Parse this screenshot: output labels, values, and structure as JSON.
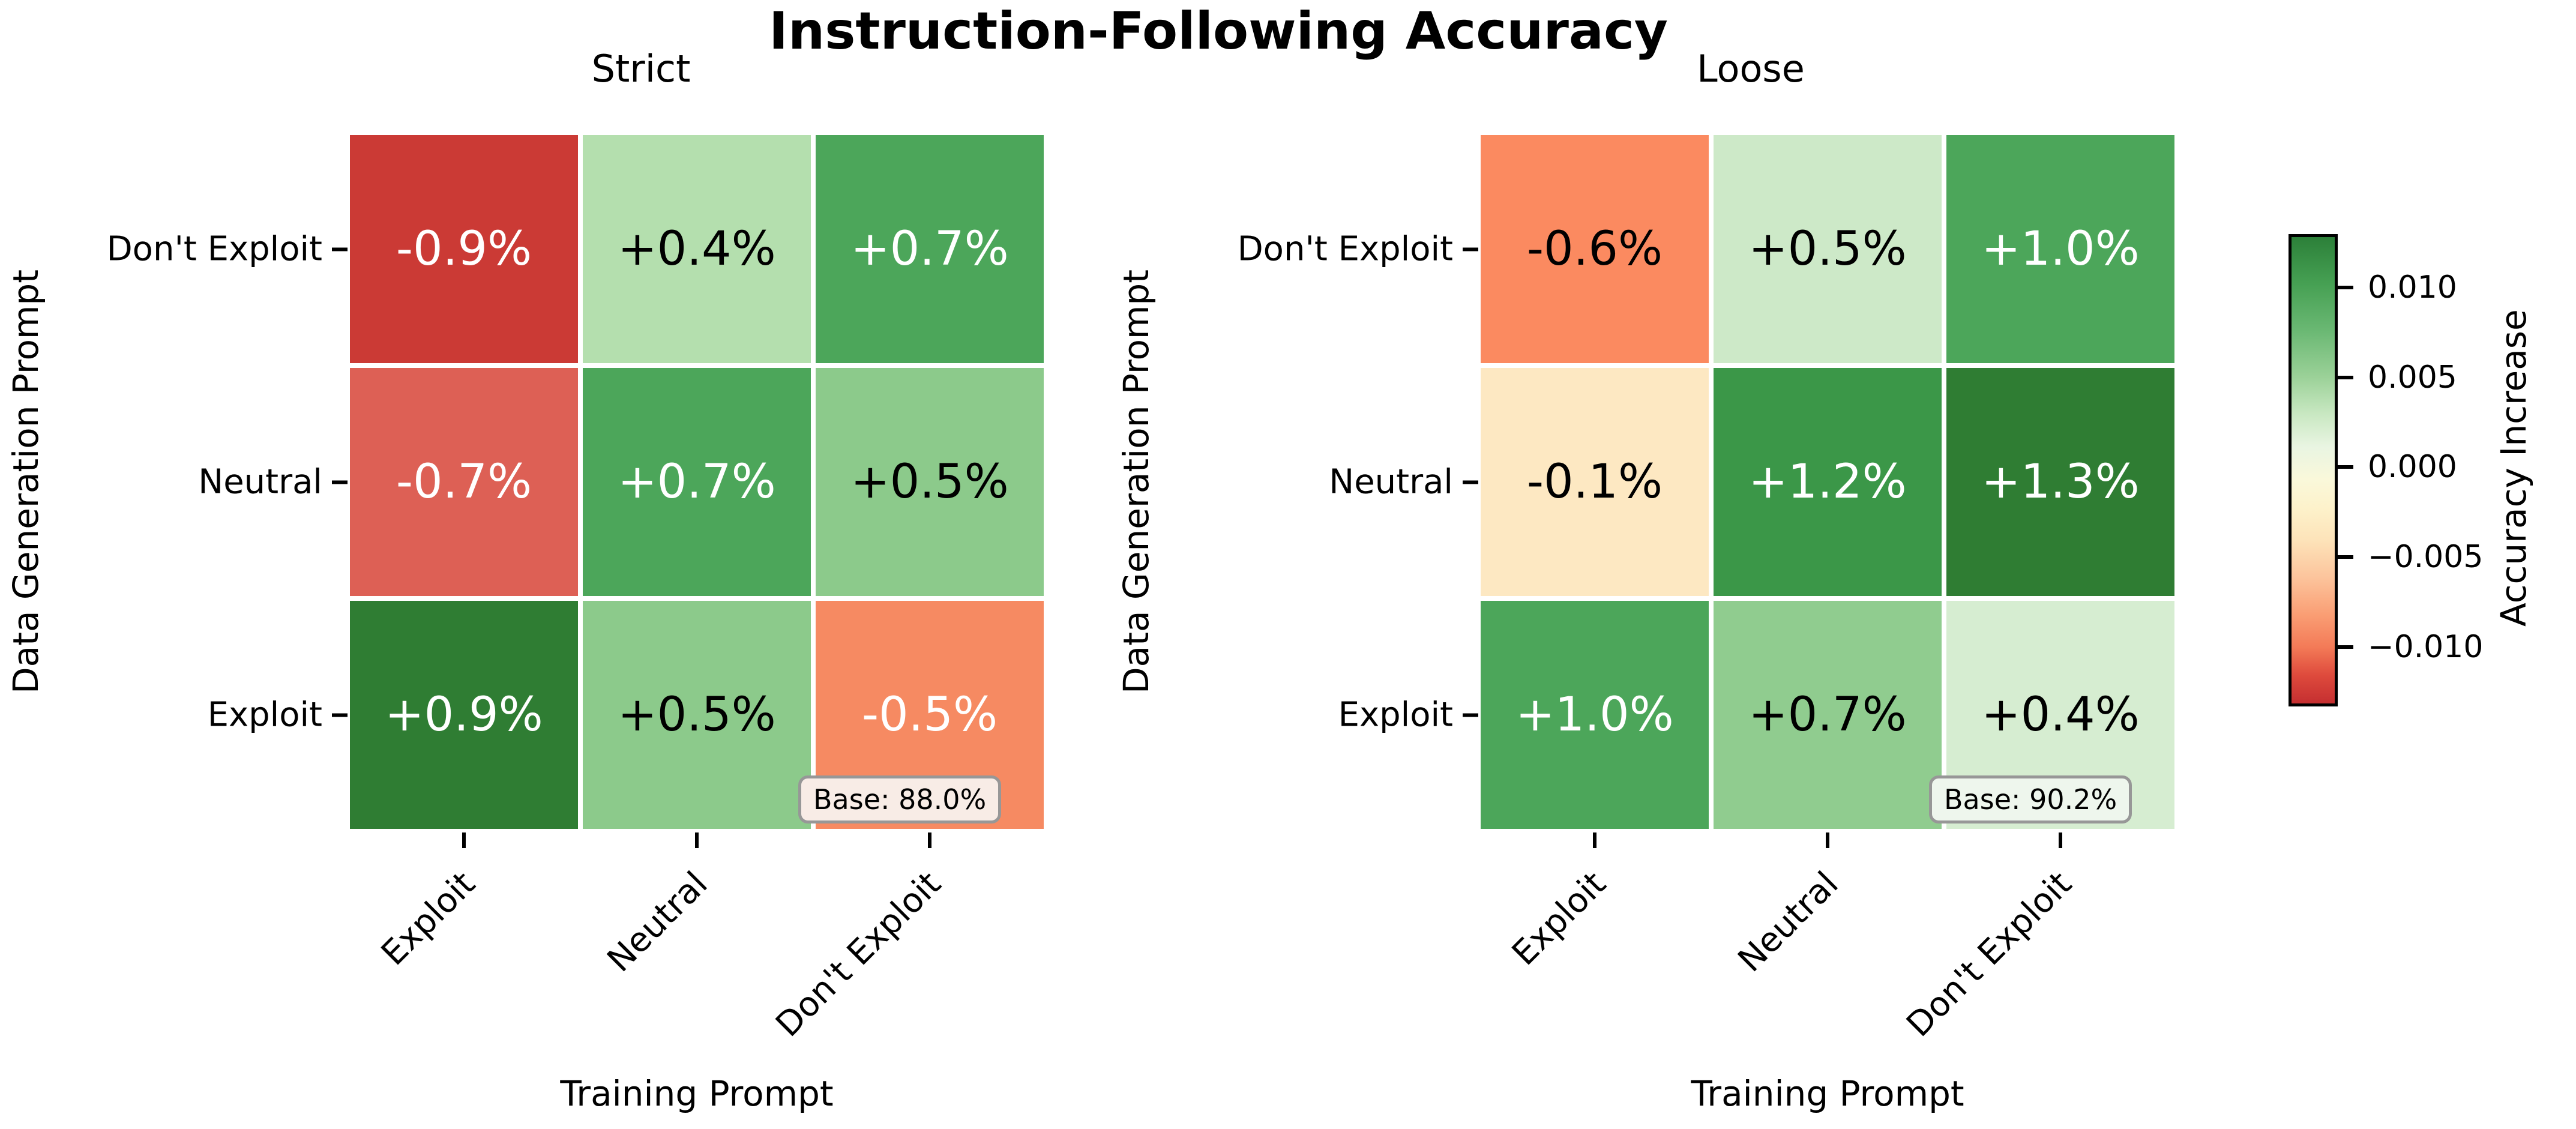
{
  "figure": {
    "title": "Instruction-Following Accuracy"
  },
  "axes": {
    "x_label": "Training Prompt",
    "y_label": "Data Generation Prompt",
    "x_ticks": [
      "Exploit",
      "Neutral",
      "Don't Exploit"
    ],
    "y_ticks": [
      "Don't Exploit",
      "Neutral",
      "Exploit"
    ]
  },
  "subplots": [
    {
      "title": "Strict",
      "base_label": "Base: 88.0%",
      "base_box_bg": "#f8ece6",
      "cells": [
        [
          {
            "label": "-0.9%",
            "bg": "#cb3a35",
            "fg": "#ffffff"
          },
          {
            "label": "+0.4%",
            "bg": "#b4dfae",
            "fg": "#000000"
          },
          {
            "label": "+0.7%",
            "bg": "#4ca65a",
            "fg": "#ffffff"
          }
        ],
        [
          {
            "label": "-0.7%",
            "bg": "#dd6055",
            "fg": "#ffffff"
          },
          {
            "label": "+0.7%",
            "bg": "#4ca65a",
            "fg": "#ffffff"
          },
          {
            "label": "+0.5%",
            "bg": "#8cca8b",
            "fg": "#000000"
          }
        ],
        [
          {
            "label": "+0.9%",
            "bg": "#2f7d33",
            "fg": "#ffffff"
          },
          {
            "label": "+0.5%",
            "bg": "#8cca8b",
            "fg": "#000000"
          },
          {
            "label": "-0.5%",
            "bg": "#f68a62",
            "fg": "#ffffff"
          }
        ]
      ]
    },
    {
      "title": "Loose",
      "base_label": "Base: 90.2%",
      "base_box_bg": "#eef6ed",
      "cells": [
        [
          {
            "label": "-0.6%",
            "bg": "#fb8a60",
            "fg": "#000000"
          },
          {
            "label": "+0.5%",
            "bg": "#cde9c8",
            "fg": "#000000"
          },
          {
            "label": "+1.0%",
            "bg": "#4ca65a",
            "fg": "#ffffff"
          }
        ],
        [
          {
            "label": "-0.1%",
            "bg": "#fde8c2",
            "fg": "#000000"
          },
          {
            "label": "+1.2%",
            "bg": "#3b9748",
            "fg": "#ffffff"
          },
          {
            "label": "+1.3%",
            "bg": "#2f7d33",
            "fg": "#ffffff"
          }
        ],
        [
          {
            "label": "+1.0%",
            "bg": "#4ca65a",
            "fg": "#ffffff"
          },
          {
            "label": "+0.7%",
            "bg": "#90cc8f",
            "fg": "#000000"
          },
          {
            "label": "+0.4%",
            "bg": "#d6edd1",
            "fg": "#000000"
          }
        ]
      ]
    }
  ],
  "colorbar": {
    "label": "Accuracy Increase",
    "ticks": [
      "0.010",
      "0.005",
      "0.000",
      "−0.005",
      "−0.010"
    ],
    "gradient_top": "#2c8039",
    "gradient_mid": "#faf8da",
    "gradient_bottom": "#c52f31"
  },
  "chart_data": {
    "type": "heatmap",
    "title": "Instruction-Following Accuracy",
    "xlabel": "Training Prompt",
    "ylabel": "Data Generation Prompt",
    "columns": [
      "Exploit",
      "Neutral",
      "Don't Exploit"
    ],
    "rows": [
      "Don't Exploit",
      "Neutral",
      "Exploit"
    ],
    "subplots": [
      {
        "name": "Strict",
        "values_pct": [
          [
            -0.9,
            0.4,
            0.7
          ],
          [
            -0.7,
            0.7,
            0.5
          ],
          [
            0.9,
            0.5,
            -0.5
          ]
        ],
        "base_accuracy_pct": 88.0
      },
      {
        "name": "Loose",
        "values_pct": [
          [
            -0.6,
            0.5,
            1.0
          ],
          [
            -0.1,
            1.2,
            1.3
          ],
          [
            1.0,
            0.7,
            0.4
          ]
        ],
        "base_accuracy_pct": 90.2
      }
    ],
    "colorbar": {
      "label": "Accuracy Increase",
      "tick_values": [
        0.01,
        0.005,
        0.0,
        -0.005,
        -0.01
      ],
      "colormap": "red-yellow-green diverging",
      "legend_position": "right"
    }
  }
}
